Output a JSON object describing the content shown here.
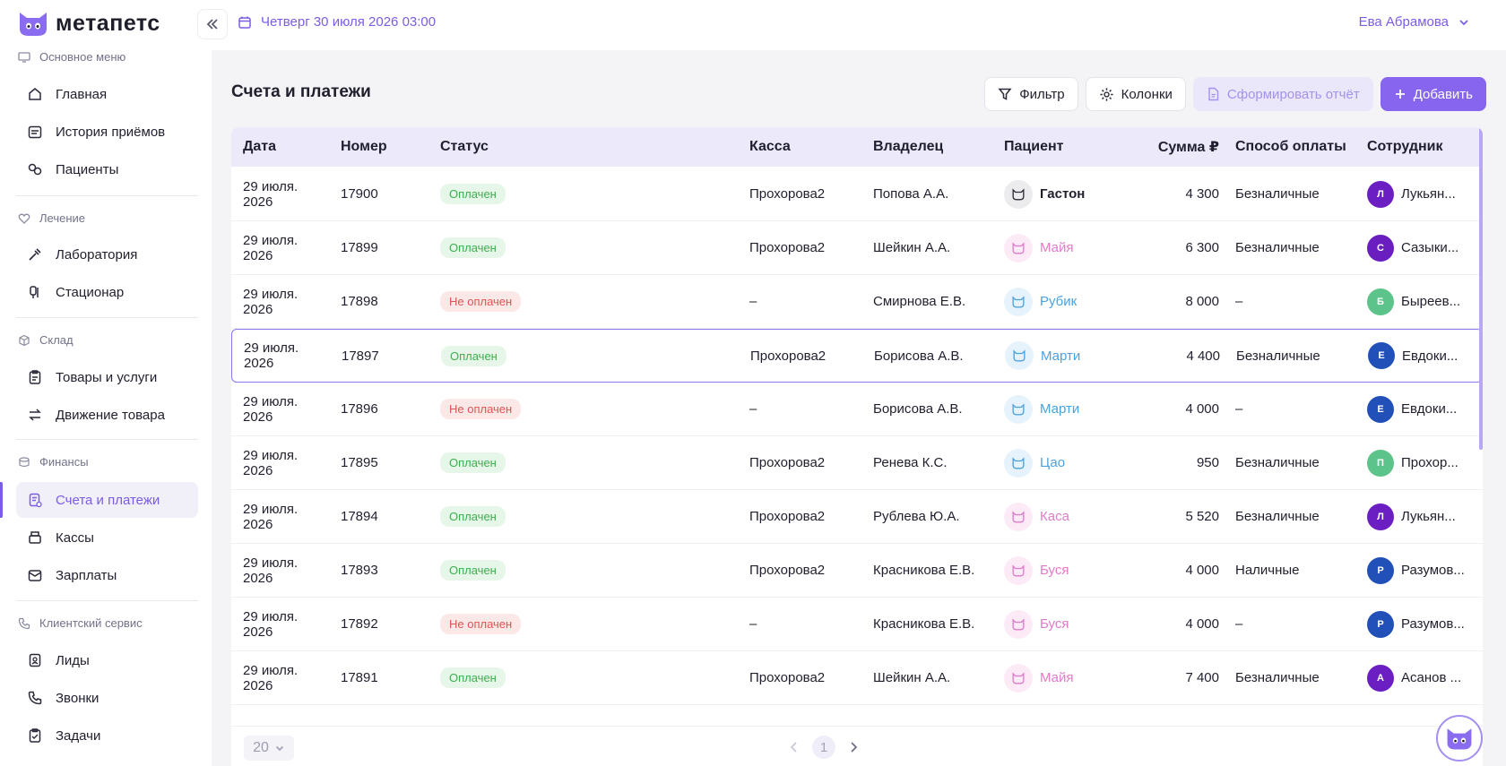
{
  "header": {
    "logo_text": "метапетс",
    "date": "Четверг 30 июля 2026 03:00",
    "user": "Ева Абрамова"
  },
  "sidebar": {
    "sections": [
      {
        "title": "Основное меню",
        "items": [
          "Главная",
          "История приёмов",
          "Пациенты"
        ]
      },
      {
        "title": "Лечение",
        "items": [
          "Лаборатория",
          "Стационар"
        ]
      },
      {
        "title": "Склад",
        "items": [
          "Товары и услуги",
          "Движение товара"
        ]
      },
      {
        "title": "Финансы",
        "items": [
          "Счета и платежи",
          "Кассы",
          "Зарплаты"
        ]
      },
      {
        "title": "Клиентский сервис",
        "items": [
          "Лиды",
          "Звонки",
          "Задачи"
        ]
      }
    ],
    "active_item": "Счета и платежи"
  },
  "main": {
    "title": "Счета и платежи",
    "toolbar": {
      "filter": "Фильтр",
      "columns": "Колонки",
      "report": "Сформировать отчёт",
      "add": "Добавить"
    },
    "table": {
      "headers": {
        "date": "Дата",
        "number": "Номер",
        "status": "Статус",
        "kassa": "Касса",
        "owner": "Владелец",
        "patient": "Пациент",
        "sum": "Сумма ₽",
        "pay": "Способ оплаты",
        "employee": "Сотрудник"
      },
      "rows": [
        {
          "date": "29 июля. 2026",
          "number": "17900",
          "status": "Оплачен",
          "paid": true,
          "kassa": "Прохорова2",
          "owner": "Попова А.А.",
          "patient": "Гастон",
          "pet_color": "#2c2c3a",
          "pet_bg": "#ececef",
          "sum": "4 300",
          "pay": "Безналичные",
          "emp_initial": "Л",
          "emp": "Лукьян...",
          "emp_color": "#6b1fc2"
        },
        {
          "date": "29 июля. 2026",
          "number": "17899",
          "status": "Оплачен",
          "paid": true,
          "kassa": "Прохорова2",
          "owner": "Шейкин А.А.",
          "patient": "Майя",
          "pet_color": "#e27acb",
          "pet_bg": "#fcebf7",
          "sum": "6 300",
          "pay": "Безналичные",
          "emp_initial": "С",
          "emp": "Сазыки...",
          "emp_color": "#6a1ec0"
        },
        {
          "date": "29 июля. 2026",
          "number": "17898",
          "status": "Не оплачен",
          "paid": false,
          "kassa": "–",
          "owner": "Смирнова Е.В.",
          "patient": "Рубик",
          "pet_color": "#4aa3e0",
          "pet_bg": "#e6f3fc",
          "sum": "8 000",
          "pay": "–",
          "emp_initial": "Б",
          "emp": "Быреев...",
          "emp_color": "#5cc48a"
        },
        {
          "date": "29 июля. 2026",
          "number": "17897",
          "status": "Оплачен",
          "paid": true,
          "kassa": "Прохорова2",
          "owner": "Борисова А.В.",
          "patient": "Марти",
          "pet_color": "#4aa3e0",
          "pet_bg": "#e6f3fc",
          "sum": "4 400",
          "pay": "Безналичные",
          "emp_initial": "Е",
          "emp": "Евдоки...",
          "emp_color": "#2150b8"
        },
        {
          "date": "29 июля. 2026",
          "number": "17896",
          "status": "Не оплачен",
          "paid": false,
          "kassa": "–",
          "owner": "Борисова А.В.",
          "patient": "Марти",
          "pet_color": "#4aa3e0",
          "pet_bg": "#e6f3fc",
          "sum": "4 000",
          "pay": "–",
          "emp_initial": "Е",
          "emp": "Евдоки...",
          "emp_color": "#2150b8"
        },
        {
          "date": "29 июля. 2026",
          "number": "17895",
          "status": "Оплачен",
          "paid": true,
          "kassa": "Прохорова2",
          "owner": "Ренева К.С.",
          "patient": "Цао",
          "pet_color": "#4aa3e0",
          "pet_bg": "#e6f3fc",
          "sum": "950",
          "pay": "Безналичные",
          "emp_initial": "П",
          "emp": "Прохор...",
          "emp_color": "#5cc48a"
        },
        {
          "date": "29 июля. 2026",
          "number": "17894",
          "status": "Оплачен",
          "paid": true,
          "kassa": "Прохорова2",
          "owner": "Рублева Ю.А.",
          "patient": "Каса",
          "pet_color": "#e27acb",
          "pet_bg": "#fcebf7",
          "sum": "5 520",
          "pay": "Безналичные",
          "emp_initial": "Л",
          "emp": "Лукьян...",
          "emp_color": "#6b1fc2"
        },
        {
          "date": "29 июля. 2026",
          "number": "17893",
          "status": "Оплачен",
          "paid": true,
          "kassa": "Прохорова2",
          "owner": "Красникова Е.В.",
          "patient": "Буся",
          "pet_color": "#e27acb",
          "pet_bg": "#fcebf7",
          "sum": "4 000",
          "pay": "Наличные",
          "emp_initial": "Р",
          "emp": "Разумов...",
          "emp_color": "#2150b8"
        },
        {
          "date": "29 июля. 2026",
          "number": "17892",
          "status": "Не оплачен",
          "paid": false,
          "kassa": "–",
          "owner": "Красникова Е.В.",
          "patient": "Буся",
          "pet_color": "#e27acb",
          "pet_bg": "#fcebf7",
          "sum": "4 000",
          "pay": "–",
          "emp_initial": "Р",
          "emp": "Разумов...",
          "emp_color": "#2150b8"
        },
        {
          "date": "29 июля. 2026",
          "number": "17891",
          "status": "Оплачен",
          "paid": true,
          "kassa": "Прохорова2",
          "owner": "Шейкин А.А.",
          "patient": "Майя",
          "pet_color": "#e27acb",
          "pet_bg": "#fcebf7",
          "sum": "7 400",
          "pay": "Безналичные",
          "emp_initial": "А",
          "emp": "Асанов ...",
          "emp_color": "#6b1fc2"
        }
      ],
      "selected_row": 3
    },
    "pagination": {
      "page_size": "20",
      "current_page": "1"
    }
  },
  "colors": {
    "accent": "#7b5ce5",
    "paid_bg": "#e6f6e8",
    "paid_text": "#3fae50",
    "unpaid_bg": "#fde8e8",
    "unpaid_text": "#e05353"
  }
}
